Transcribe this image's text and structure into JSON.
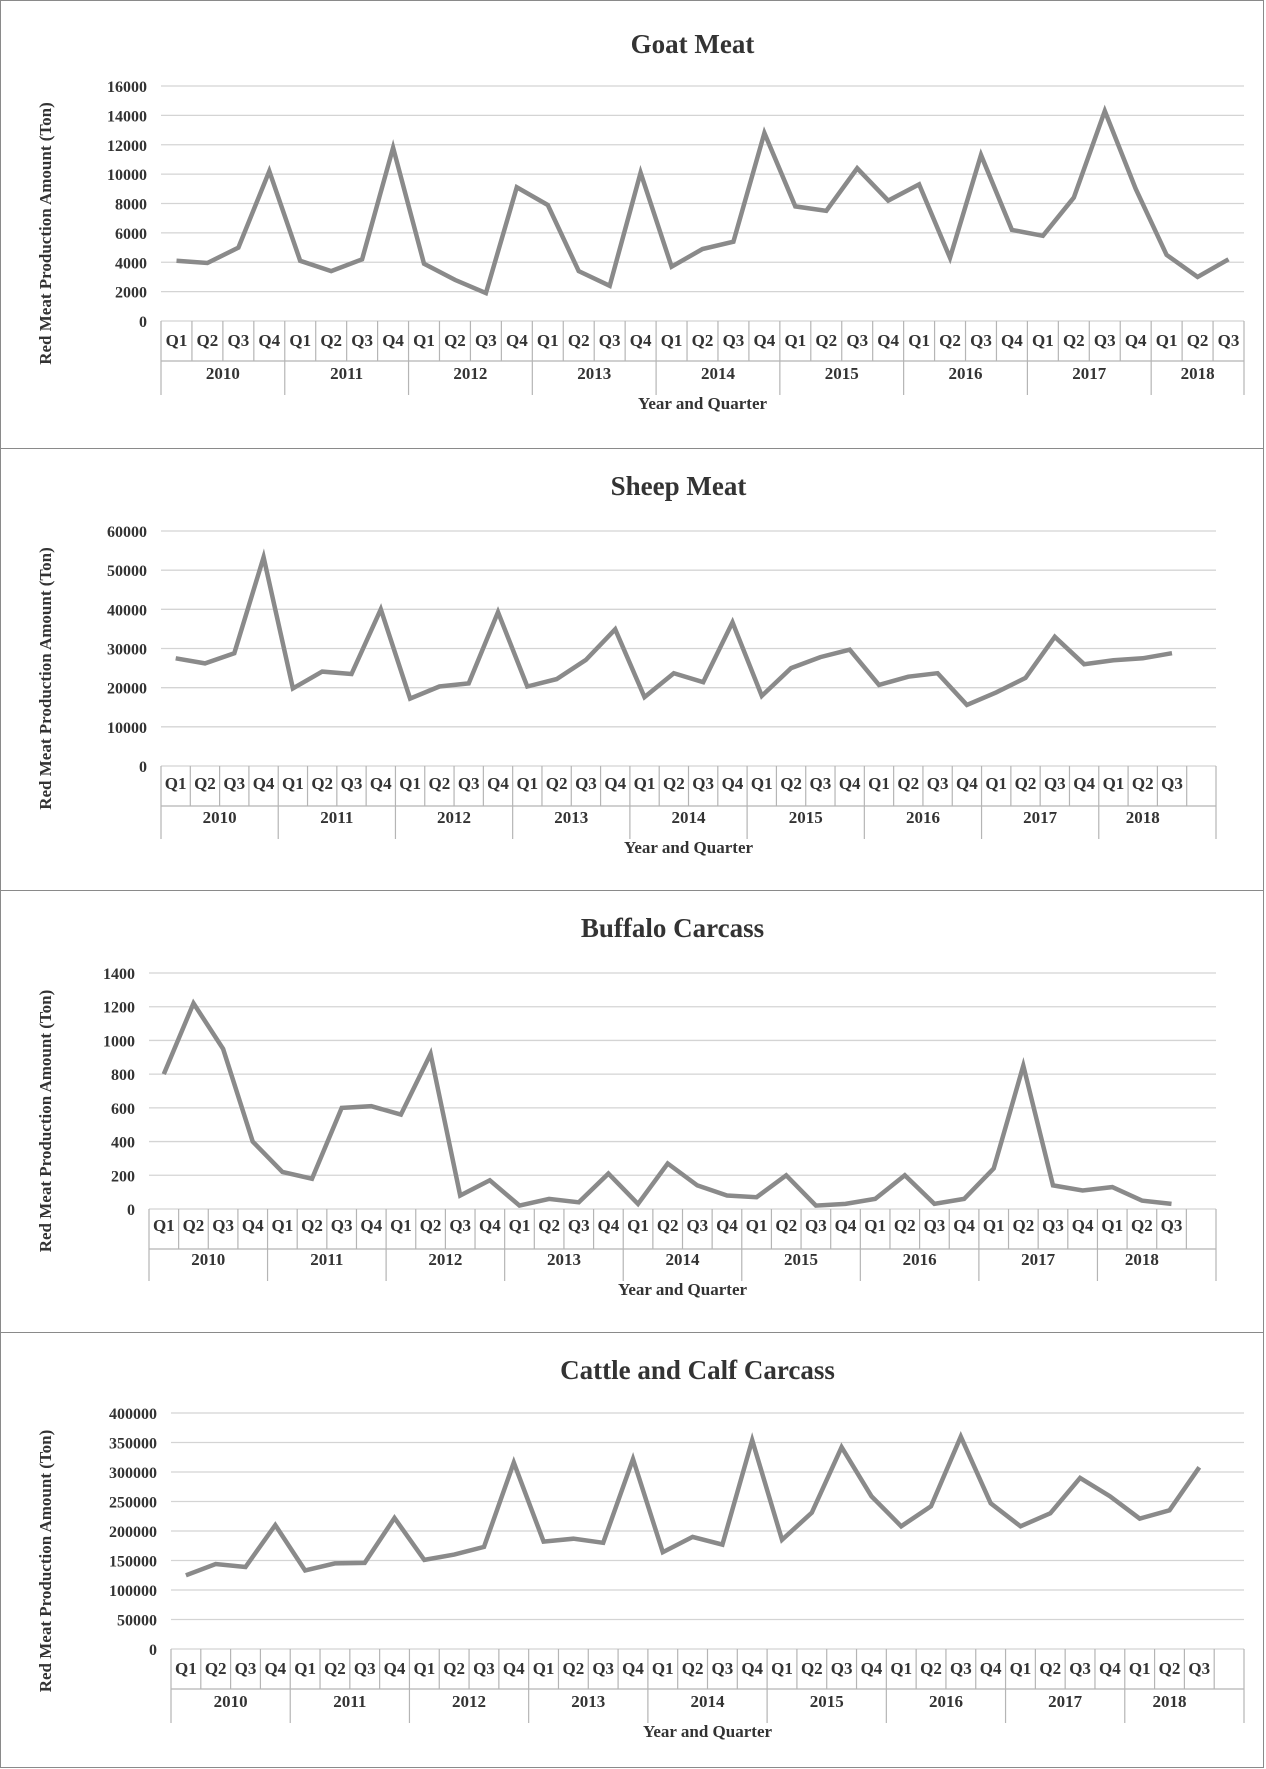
{
  "chart_data": [
    {
      "type": "line",
      "title": "Goat Meat",
      "xlabel": "Year and Quarter",
      "ylabel": "Red Meat Production Amount (Ton)",
      "ylim": [
        0,
        16000
      ],
      "yticks": [
        0,
        2000,
        4000,
        6000,
        8000,
        10000,
        12000,
        14000,
        16000
      ],
      "quarters": [
        "Q1",
        "Q2",
        "Q3",
        "Q4"
      ],
      "years": [
        "2010",
        "2011",
        "2012",
        "2013",
        "2014",
        "2015",
        "2016",
        "2017",
        "2018"
      ],
      "grid": true,
      "values": [
        4100,
        3950,
        5000,
        10200,
        4100,
        3400,
        4200,
        11800,
        3900,
        2800,
        1900,
        9100,
        7900,
        3400,
        2400,
        10100,
        3700,
        4900,
        5400,
        12800,
        7800,
        7500,
        10400,
        8200,
        9300,
        4300,
        11300,
        6200,
        5800,
        8400,
        14300,
        9000,
        4500,
        3000,
        4200
      ]
    },
    {
      "type": "line",
      "title": "Sheep Meat",
      "xlabel": "Year and Quarter",
      "ylabel": "Red Meat Production Amount (Ton)",
      "ylim": [
        0,
        60000
      ],
      "yticks": [
        0,
        10000,
        20000,
        30000,
        40000,
        50000,
        60000
      ],
      "quarters": [
        "Q1",
        "Q2",
        "Q3",
        "Q4"
      ],
      "years": [
        "2010",
        "2011",
        "2012",
        "2013",
        "2014",
        "2015",
        "2016",
        "2017",
        "2018"
      ],
      "grid": true,
      "values": [
        27500,
        26200,
        28800,
        53300,
        19800,
        24100,
        23500,
        40000,
        17200,
        20300,
        21100,
        39300,
        20300,
        22200,
        27100,
        34900,
        17600,
        23700,
        21400,
        36700,
        17900,
        25000,
        27800,
        29700,
        20700,
        22800,
        23700,
        15600,
        18800,
        22500,
        33000,
        26000,
        27000,
        27500,
        28800
      ]
    },
    {
      "type": "line",
      "title": "Buffalo Carcass",
      "xlabel": "Year and Quarter",
      "ylabel": "Red Meat Production Amount (Ton)",
      "ylim": [
        0,
        1400
      ],
      "yticks": [
        0,
        200,
        400,
        600,
        800,
        1000,
        1200,
        1400
      ],
      "quarters": [
        "Q1",
        "Q2",
        "Q3",
        "Q4"
      ],
      "years": [
        "2010",
        "2011",
        "2012",
        "2013",
        "2014",
        "2015",
        "2016",
        "2017",
        "2018"
      ],
      "grid": true,
      "values": [
        800,
        1220,
        950,
        400,
        220,
        180,
        600,
        610,
        560,
        920,
        80,
        170,
        20,
        60,
        40,
        210,
        30,
        270,
        140,
        80,
        70,
        200,
        20,
        30,
        60,
        200,
        30,
        60,
        240,
        850,
        140,
        110,
        130,
        50,
        30
      ]
    },
    {
      "type": "line",
      "title": "Cattle and Calf Carcass",
      "xlabel": "Year and Quarter",
      "ylabel": "Red Meat Production Amount (Ton)",
      "ylim": [
        0,
        400000
      ],
      "yticks": [
        0,
        50000,
        100000,
        150000,
        200000,
        250000,
        300000,
        350000,
        400000
      ],
      "quarters": [
        "Q1",
        "Q2",
        "Q3",
        "Q4"
      ],
      "years": [
        "2010",
        "2011",
        "2012",
        "2013",
        "2014",
        "2015",
        "2016",
        "2017",
        "2018"
      ],
      "grid": true,
      "values": [
        125000,
        144000,
        139000,
        210000,
        133000,
        145000,
        146000,
        222000,
        151000,
        160000,
        173000,
        316000,
        182000,
        187000,
        180000,
        322000,
        164000,
        190000,
        177000,
        354000,
        185000,
        231000,
        342000,
        259000,
        208000,
        242000,
        360000,
        247000,
        208000,
        230000,
        290000,
        259000,
        221000,
        235000,
        308000
      ]
    }
  ]
}
